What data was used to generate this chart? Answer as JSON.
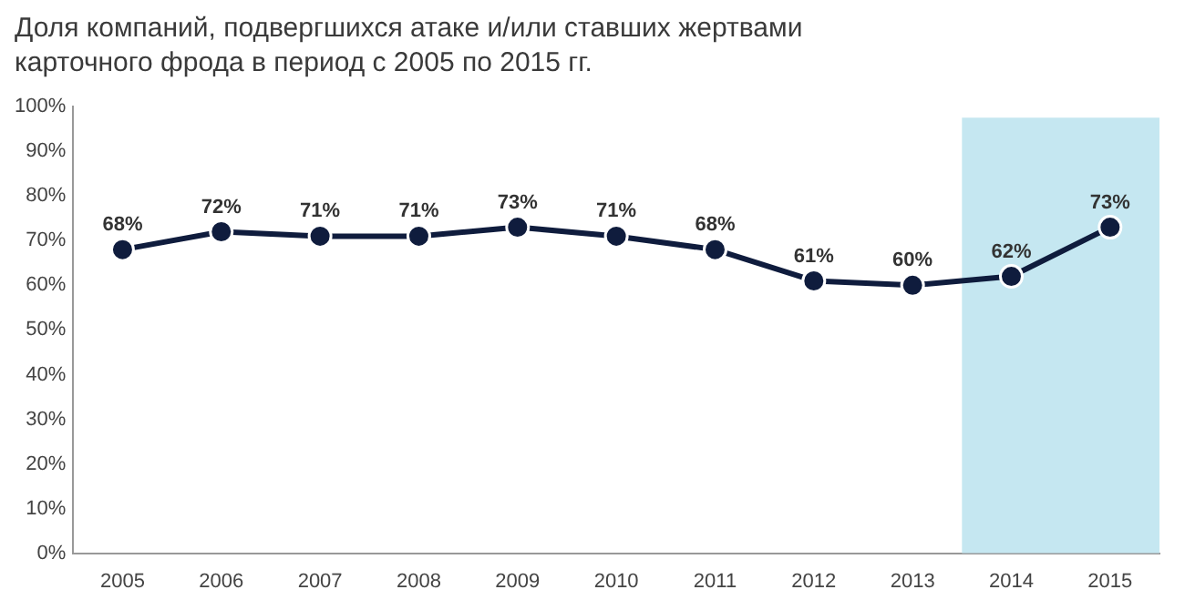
{
  "chart_data": {
    "type": "line",
    "title": "Доля компаний, подвергшихся атаке и/или ставших жертвами карточного фрода в период с 2005 по 2015 гг.",
    "categories": [
      "2005",
      "2006",
      "2007",
      "2008",
      "2009",
      "2010",
      "2011",
      "2012",
      "2013",
      "2014",
      "2015"
    ],
    "values": [
      68,
      72,
      71,
      71,
      73,
      71,
      68,
      61,
      60,
      62,
      73
    ],
    "value_labels": [
      "68%",
      "72%",
      "71%",
      "71%",
      "73%",
      "71%",
      "68%",
      "61%",
      "60%",
      "62%",
      "73%"
    ],
    "color": "#0f1c3d",
    "marker": "circle",
    "line_style": "solid",
    "grid": false,
    "legend": false,
    "ylim": [
      0,
      100
    ],
    "yticks": [
      {
        "value": 0,
        "label": "0%"
      },
      {
        "value": 10,
        "label": "10%"
      },
      {
        "value": 20,
        "label": "20%"
      },
      {
        "value": 30,
        "label": "30%"
      },
      {
        "value": 40,
        "label": "40%"
      },
      {
        "value": 50,
        "label": "50%"
      },
      {
        "value": 60,
        "label": "60%"
      },
      {
        "value": 70,
        "label": "70%"
      },
      {
        "value": 80,
        "label": "80%"
      },
      {
        "value": 90,
        "label": "90%"
      },
      {
        "value": 100,
        "label": "100%"
      }
    ],
    "bands": [
      {
        "axis": "x",
        "from": "2014",
        "to": "2015",
        "color": "#c5e7f1"
      }
    ]
  }
}
